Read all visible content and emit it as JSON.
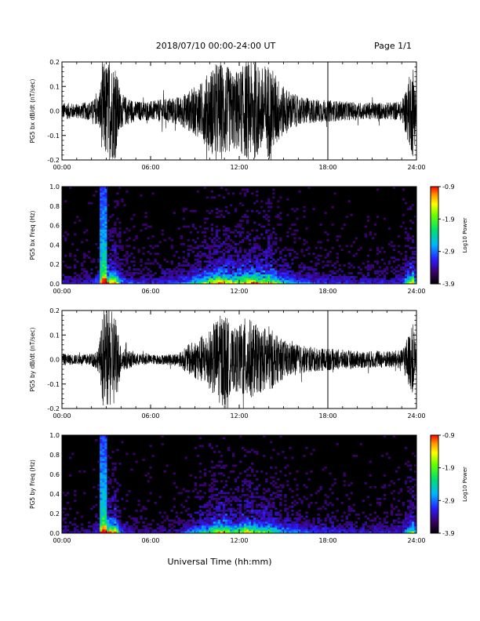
{
  "header": {
    "title": "2018/07/10   00:00-24:00 UT",
    "page": "Page 1/1"
  },
  "xaxis_label": "Universal Time (hh:mm)",
  "chart_data": [
    {
      "type": "line",
      "title": "",
      "ylabel": "PG5 bx dB/dt (nT/sec)",
      "xlabel": "",
      "x_ticks": [
        "00:00",
        "06:00",
        "12:00",
        "18:00",
        "24:00"
      ],
      "y_ticks": [
        "-0.2",
        "-0.1",
        "0.0",
        "0.1",
        "0.2"
      ],
      "xlim": [
        0,
        24
      ],
      "ylim": [
        -0.2,
        0.2
      ],
      "series": [
        {
          "x": [
            0,
            1,
            2,
            2.5,
            2.8,
            3.0,
            3.3,
            3.6,
            4.0,
            5,
            6,
            7,
            8,
            8.5,
            9,
            9.5,
            10,
            10.5,
            11,
            11.5,
            12,
            12.5,
            13,
            13.5,
            14,
            14.5,
            15,
            16,
            17,
            18,
            19,
            20,
            21,
            22,
            23,
            23.8,
            24
          ],
          "amplitude": [
            0.035,
            0.03,
            0.04,
            0.07,
            0.2,
            0.2,
            0.2,
            0.2,
            0.07,
            0.04,
            0.04,
            0.05,
            0.06,
            0.08,
            0.1,
            0.12,
            0.17,
            0.2,
            0.2,
            0.16,
            0.17,
            0.2,
            0.2,
            0.18,
            0.2,
            0.15,
            0.1,
            0.06,
            0.05,
            0.045,
            0.04,
            0.035,
            0.035,
            0.035,
            0.04,
            0.2,
            0.05
          ]
        }
      ]
    },
    {
      "type": "heatmap",
      "title": "",
      "ylabel": "PG5 bx Freq (Hz)",
      "xlabel": "",
      "x_ticks": [
        "00:00",
        "06:00",
        "12:00",
        "18:00",
        "24:00"
      ],
      "y_ticks": [
        "0.0",
        "0.2",
        "0.4",
        "0.6",
        "0.8",
        "1.0"
      ],
      "xlim": [
        0,
        24
      ],
      "ylim": [
        0,
        1
      ],
      "colorbar": {
        "label": "Log10 Power",
        "ticks": [
          "-0.9",
          "-1.9",
          "-2.9",
          "-3.9"
        ],
        "range": [
          -3.9,
          -0.9
        ]
      }
    },
    {
      "type": "line",
      "title": "",
      "ylabel": "PG5 by dB/dt (nT/sec)",
      "xlabel": "",
      "x_ticks": [
        "00:00",
        "06:00",
        "12:00",
        "18:00",
        "24:00"
      ],
      "y_ticks": [
        "-0.2",
        "-0.1",
        "0.0",
        "0.1",
        "0.2"
      ],
      "xlim": [
        0,
        24
      ],
      "ylim": [
        -0.2,
        0.2
      ],
      "series": [
        {
          "x": [
            0,
            1,
            2,
            2.5,
            2.8,
            3.0,
            3.3,
            3.6,
            4.0,
            5,
            6,
            7,
            8,
            8.5,
            9,
            9.5,
            10,
            10.5,
            11,
            11.5,
            12,
            12.5,
            13,
            13.5,
            14,
            14.5,
            15,
            16,
            17,
            18,
            19,
            20,
            21,
            22,
            23,
            23.8,
            24
          ],
          "amplitude": [
            0.025,
            0.02,
            0.025,
            0.05,
            0.2,
            0.2,
            0.2,
            0.2,
            0.05,
            0.025,
            0.02,
            0.02,
            0.03,
            0.06,
            0.08,
            0.1,
            0.12,
            0.17,
            0.2,
            0.12,
            0.14,
            0.18,
            0.15,
            0.13,
            0.14,
            0.1,
            0.08,
            0.06,
            0.05,
            0.045,
            0.04,
            0.035,
            0.035,
            0.035,
            0.04,
            0.15,
            0.05
          ]
        }
      ]
    },
    {
      "type": "heatmap",
      "title": "",
      "ylabel": "PG5 by Freq (Hz)",
      "xlabel": "",
      "x_ticks": [
        "00:00",
        "06:00",
        "12:00",
        "18:00",
        "24:00"
      ],
      "y_ticks": [
        "0.0",
        "0.2",
        "0.4",
        "0.6",
        "0.8",
        "1.0"
      ],
      "xlim": [
        0,
        24
      ],
      "ylim": [
        0,
        1
      ],
      "colorbar": {
        "label": "Log10 Power",
        "ticks": [
          "-0.9",
          "-1.9",
          "-2.9",
          "-3.9"
        ],
        "range": [
          -3.9,
          -0.9
        ]
      }
    }
  ]
}
